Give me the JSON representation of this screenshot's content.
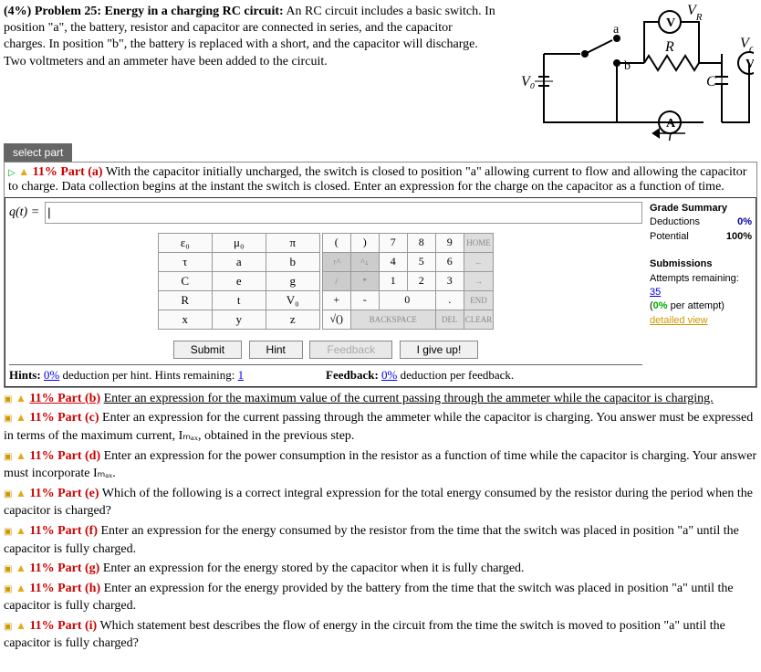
{
  "problem": {
    "prefix": "(4%)  Problem 25:   Energy in a charging RC circuit:",
    "text": " An RC circuit includes a basic switch. In position \"a\", the battery, resistor and capacitor are connected in series, and the capacitor charges. In position \"b\", the battery is replaced with a short, and the capacitor will discharge. Two voltmeters and an ammeter have been added to the circuit."
  },
  "diagram": {
    "labels": {
      "V0": "V₀",
      "a": "a",
      "b": "b",
      "R": "R",
      "VR": "V",
      "VRlabel": "R",
      "C": "C",
      "VC": "V",
      "VClabel": "C",
      "I": "I",
      "Ammeter": "A",
      "Vmeter": "V"
    }
  },
  "select_part_label": "select part",
  "part_a": {
    "title": "11% Part (a)",
    "text": "With the capacitor initially uncharged, the switch is closed to position \"a\" allowing current to flow and allowing the capacitor to charge. Data collection begins at the instant the switch is closed. Enter an expression for the charge on the capacitor as a function of time.",
    "qlabel": "q(t) = "
  },
  "grade": {
    "title": "Grade Summary",
    "deductions_lbl": "Deductions",
    "deductions_val": "0%",
    "potential_lbl": "Potential",
    "potential_val": "100%",
    "subs_title": "Submissions",
    "attempts_lbl": "Attempts remaining:",
    "attempts_val": "35",
    "per_attempt": "(0% per attempt)",
    "detailed": "detailed view"
  },
  "symbols": [
    [
      "ε₀",
      "μ₀",
      "π"
    ],
    [
      "τ",
      "a",
      "b"
    ],
    [
      "C",
      "e",
      "g"
    ],
    [
      "R",
      "t",
      "V₀"
    ],
    [
      "x",
      "y",
      "z"
    ]
  ],
  "numpad": {
    "r1": [
      "(",
      ")",
      "7",
      "8",
      "9",
      "HOME"
    ],
    "r2": [
      "↑^",
      "^↓",
      "4",
      "5",
      "6",
      "←"
    ],
    "r3": [
      "/",
      "*",
      "1",
      "2",
      "3",
      "→"
    ],
    "r4": [
      "+",
      "-",
      "0",
      ".",
      "END"
    ],
    "r5": [
      "√()",
      "BACKSPACE",
      "DEL",
      "CLEAR"
    ]
  },
  "buttons": {
    "submit": "Submit",
    "hint": "Hint",
    "feedback": "Feedback",
    "giveup": "I give up!"
  },
  "foot": {
    "hints_lbl": "Hints: ",
    "hints_pct": "0%",
    "hints_txt": " deduction per hint. Hints remaining: ",
    "hints_remain": "1",
    "fb_lbl": "Feedback: ",
    "fb_pct": "0%",
    "fb_txt": " deduction per feedback."
  },
  "parts": [
    {
      "id": "b",
      "title": "11% Part (b)",
      "text": "Enter an expression for the maximum value of the current passing through the ammeter while the capacitor is charging.",
      "link": true
    },
    {
      "id": "c",
      "title": "11% Part (c)",
      "text": "Enter an expression for the current passing through the ammeter while the capacitor is charging. You answer must be expressed in terms of the maximum current, Iₘₐₓ, obtained in the previous step."
    },
    {
      "id": "d",
      "title": "11% Part (d)",
      "text": "Enter an expression for the power consumption in the resistor as a function of time while the capacitor is charging. Your answer must incorporate Iₘₐₓ."
    },
    {
      "id": "e",
      "title": "11% Part (e)",
      "text": "Which of the following is a correct integral expression for the total energy consumed by the resistor during the period when the capacitor is charged?"
    },
    {
      "id": "f",
      "title": "11% Part (f)",
      "text": "Enter an expression for the energy consumed by the resistor from the time that the switch was placed in position \"a\" until the capacitor is fully charged."
    },
    {
      "id": "g",
      "title": "11% Part (g)",
      "text": "Enter an expression for the energy stored by the capacitor when it is fully charged."
    },
    {
      "id": "h",
      "title": "11% Part (h)",
      "text": "Enter an expression for the energy provided by the battery from the time that the switch was placed in position \"a\" until the capacitor is fully charged."
    },
    {
      "id": "i",
      "title": "11% Part (i)",
      "text": "Which statement best describes the flow of energy in the circuit from the time the switch is moved to position \"a\" until the capacitor is fully charged?"
    }
  ]
}
